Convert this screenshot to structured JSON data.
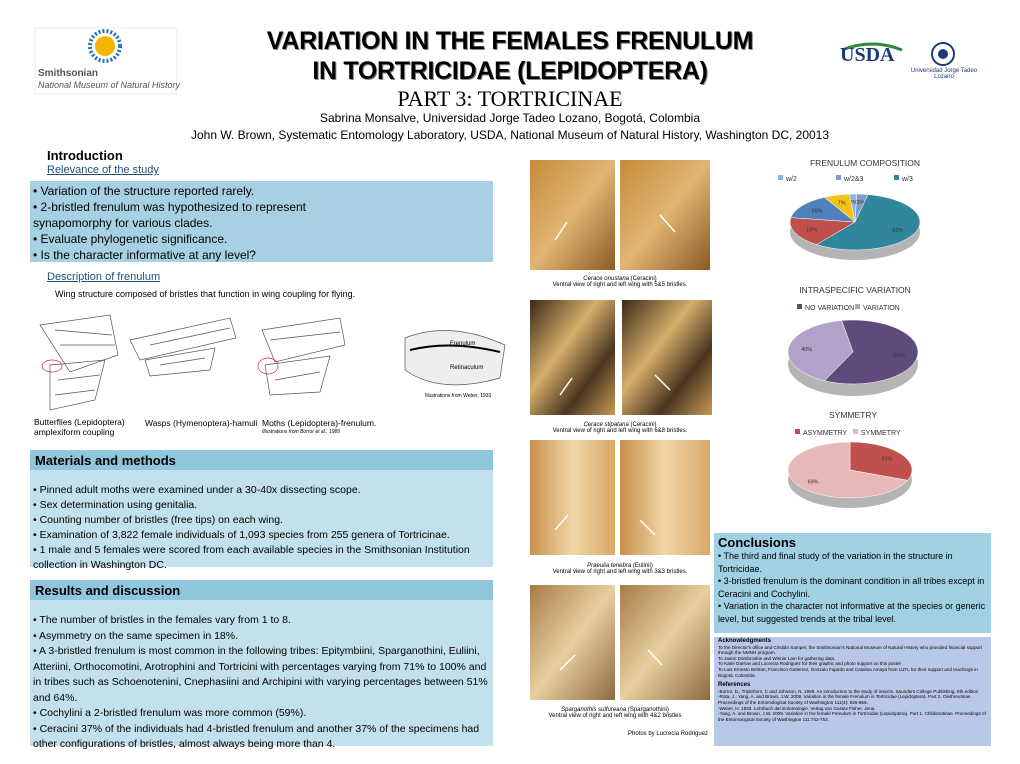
{
  "logos": {
    "smithsonian": "Smithsonian",
    "museum": "National Museum of Natural History",
    "usda": "USDA",
    "university": "Universidad Jorge Tadeo Lozano"
  },
  "header": {
    "title_lines": [
      "VARIATION IN THE FEMALES FRENULUM",
      "IN TORTRICIDAE (LEPIDOPTERA)"
    ],
    "part": "PART 3: TORTRICINAE",
    "authors": [
      "Sabrina Monsalve, Universidad Jorge Tadeo Lozano, Bogotá, Colombia",
      "John W. Brown, Systematic Entomology Laboratory, USDA, National Museum of Natural History, Washington DC, 20013"
    ]
  },
  "introduction": {
    "title": "Introduction",
    "subtitle": "Relevance of the study",
    "bullets": [
      "Variation of the structure reported rarely.",
      "2-bristled frenulum was hypothesized to represent synapomorphy  for various clades.",
      "Evaluate phylogenetic significance.",
      "Is the character informative at any level?"
    ]
  },
  "description": {
    "title": "Description of frenulum",
    "text": "Wing structure composed of bristles that function in wing coupling for flying.",
    "captions": [
      "Butterflies (Lepidoptera) amplexiform coupling",
      "Wasps (Hymenoptera)-hamuli",
      "Moths (Lepidoptera)-frenulum."
    ],
    "labels": [
      "Frenulum",
      "Retinaculum"
    ],
    "credit_weber": "Illustrations from Weber, 1933",
    "credit_borror": "Illustrations from Borror et al., 1989"
  },
  "photos": [
    {
      "species": "Cerace onustana",
      "tribe": "(Ceracini)",
      "caption": "Ventral view of right and left wing with  5&5 bristles."
    },
    {
      "species": "Cerace stipatana",
      "tribe": "(Ceracini)",
      "caption": "Ventral view of right and left wing with 6&8 bristles."
    },
    {
      "species": "Praeulia tenebra",
      "tribe": "(Eulinii)",
      "caption": "Ventral view of right and left wing with 3&3 bristles."
    },
    {
      "species": "Sparganothis sulfureana",
      "tribe": "(Sparganothini)",
      "caption": "Ventral view of right and left wing with 4&2 bristles"
    }
  ],
  "photo_credit": "Photos by Lucrecia Rodriguez",
  "methods": {
    "title": "Materials and methods",
    "bullets": [
      "Pinned adult moths were examined under a 30-40x dissecting scope.",
      "Sex determination using genitalia.",
      "Counting number of bristles (free tips) on each wing.",
      "Examination of 3,822 female individuals of 1,093 species from 255 genera of Tortricinae.",
      "1 male and 5 females were scored from each available species in the Smithsonian Institution collection in Washington DC."
    ]
  },
  "results": {
    "title": "Results and discussion",
    "bullets": [
      "The number of bristles in the females vary from 1 to 8.",
      "Asymmetry on the same specimen in 18%.",
      "A 3-bristled frenulum is most common in the following tribes: Epitymbiini, Sparganothini, Euliini,  Atteriini, Orthocomotini, Arotrophini and Tortricini with percentages varying from 71% to 100% and in tribes such as Schoenotenini, Cnephasiini and Archipini with varying percentages between 51% and 64%.",
      "Cochylini a 2-bristled frenulum was more common (59%).",
      "Ceracini  37%  of the individuals had 4-bristled frenulum and another 37% of the specimens had other configurations of bristles, almost always being more than 4."
    ]
  },
  "conclusions": {
    "title": "Conclusions",
    "bullets": [
      "The third and final study of the variation in the structure in Tortricidae.",
      "3-bristled frenulum is the dominant condition in all tribes except in Ceracini and Cochylini.",
      "Variation in the character not informative at the species or generic level, but suggested trends at the tribal level."
    ]
  },
  "acknowledgments": {
    "title": "Acknowledgments",
    "items": [
      "To the Director's office and Cristián Samper, the Smithsonian's National Museum of Natural History  who provided  financial support through the NMNH program.",
      "To Jason Dombroskie and Winnie Lam for gathering data.",
      "To Karie Darrow and Lucrecia Rodriguez for their graphic and photo support on this poster",
      "To  Luis Ernesto Beltran, Francisco Gutierrez, Gonzalo Fajardo and  Catalina Amaya from UJTL for their support and teachings in Bogotá, Colombia."
    ]
  },
  "references": {
    "title": "References",
    "items": [
      "-Borror, D., Triplehorn, C and Johnson, N. 1989. An introduction to the study of insects. Saunders College Publishing. 6th edition",
      "-Rota, J., Yang, A. and Brown, J.W. 2009. Variation in the female Frenulum in Tortricidae (Lepidoptera). Part 2. Olethreutinae. Proceedings of the Entomological Society of Washington 111(4): 826-866.",
      "-Weber, H. 1933. Lehrbuch der Entomologie. Verlag von Gustav Fisher. Jena.",
      "-Yang, A. and Brown, J.W. 2009. Variation in the female Frenulum in Tortricidae (Lepidoptera). Part 1. Chlidanotinae. Proceedings of the Entomological Society of Washington 111:742-753."
    ]
  },
  "chart_data": [
    {
      "type": "pie",
      "title": "FRENULUM COMPOSITION",
      "categories": [
        "w/2",
        "w/2&3",
        "w/3",
        null,
        null,
        null
      ],
      "values": [
        2,
        3,
        62,
        19,
        16,
        7
      ],
      "value_labels": [
        "2%",
        "3%",
        "62%",
        "19%",
        "16%",
        "7%"
      ],
      "colors": [
        "#8fb4e3",
        "#7e9cc8",
        "#31859c",
        "#c0504d",
        "#4f81bd",
        "#f2c314"
      ]
    },
    {
      "type": "pie",
      "title": "INTRASPECIFIC VARIATION",
      "categories": [
        "NO VARIATION",
        "VARIATION"
      ],
      "values": [
        60,
        40
      ],
      "value_labels": [
        "60%",
        "40%"
      ],
      "colors": [
        "#604a7b",
        "#b3a2c7"
      ]
    },
    {
      "type": "pie",
      "title": "SYMMETRY",
      "categories": [
        "ASYMMETRY",
        "SYMMETRY"
      ],
      "values": [
        31,
        69
      ],
      "value_labels": [
        "31%",
        "69%"
      ],
      "colors": [
        "#c0504d",
        "#e6b9b8"
      ]
    }
  ]
}
